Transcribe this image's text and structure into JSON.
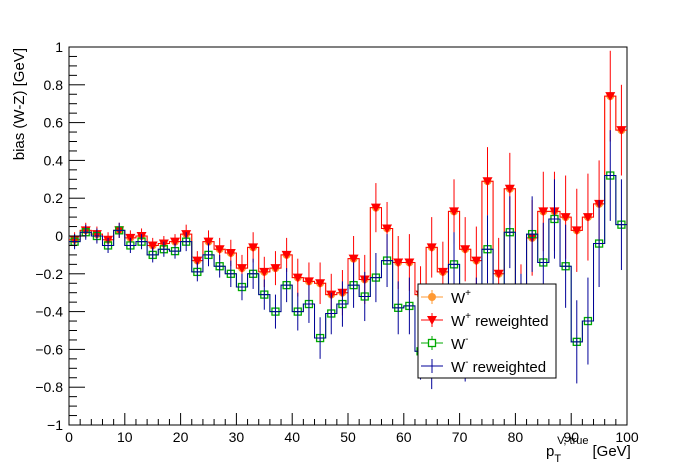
{
  "chart_data": {
    "type": "scatter",
    "xlabel": {
      "main": "p",
      "sub": "T",
      "sup": "V, true",
      "unit": "[GeV]"
    },
    "ylabel": "bias (W-Z) [GeV]",
    "xlim": [
      0,
      100
    ],
    "ylim": [
      -1,
      1
    ],
    "x_tick_labels": [
      "0",
      "10",
      "20",
      "30",
      "40",
      "50",
      "60",
      "70",
      "80",
      "90",
      "100"
    ],
    "y_tick_labels": [
      "−1",
      "−0.8",
      "−0.6",
      "−0.4",
      "−0.2",
      "0",
      "0.2",
      "0.4",
      "0.6",
      "0.8",
      "1"
    ],
    "grid": false,
    "legend_position": "bottom-right",
    "bin_width": 2,
    "x": [
      1,
      3,
      5,
      7,
      9,
      11,
      13,
      15,
      17,
      19,
      21,
      23,
      25,
      27,
      29,
      31,
      33,
      35,
      37,
      39,
      41,
      43,
      45,
      47,
      49,
      51,
      53,
      55,
      57,
      59,
      61,
      63,
      65,
      67,
      69,
      71,
      73,
      75,
      77,
      79,
      81,
      83,
      85,
      87,
      89,
      91,
      93,
      95,
      97,
      99
    ],
    "series": [
      {
        "name": "W+",
        "legend_sup": "+",
        "legend_text": " reweighted",
        "marker": "circle",
        "color": "#ff9933",
        "values": [
          -0.02,
          0.03,
          0.01,
          -0.02,
          0.03,
          -0.01,
          0.0,
          -0.05,
          -0.04,
          -0.03,
          0.01,
          -0.13,
          -0.03,
          -0.07,
          -0.09,
          -0.17,
          -0.06,
          -0.19,
          -0.17,
          -0.1,
          -0.22,
          -0.24,
          -0.25,
          -0.31,
          -0.3,
          -0.12,
          -0.23,
          0.15,
          0.04,
          -0.14,
          -0.14,
          -0.31,
          -0.06,
          -0.19,
          0.13,
          -0.07,
          -0.13,
          0.29,
          -0.2,
          0.25,
          -0.35,
          -0.01,
          0.13,
          0.13,
          0.1,
          0.03,
          0.1,
          0.17,
          0.74,
          0.56
        ],
        "err": [
          0.04,
          0.04,
          0.04,
          0.04,
          0.04,
          0.04,
          0.04,
          0.04,
          0.04,
          0.04,
          0.05,
          0.05,
          0.06,
          0.06,
          0.07,
          0.07,
          0.08,
          0.08,
          0.09,
          0.09,
          0.1,
          0.1,
          0.11,
          0.11,
          0.12,
          0.12,
          0.13,
          0.13,
          0.14,
          0.14,
          0.15,
          0.15,
          0.16,
          0.16,
          0.17,
          0.17,
          0.18,
          0.18,
          0.19,
          0.19,
          0.2,
          0.2,
          0.21,
          0.21,
          0.22,
          0.22,
          0.23,
          0.23,
          0.24,
          0.24
        ],
        "show_errors": false
      },
      {
        "name": "W+ reweighted",
        "marker": "triangle-down",
        "color": "#ff0000",
        "values": [
          -0.02,
          0.03,
          0.01,
          -0.02,
          0.03,
          -0.01,
          0.0,
          -0.05,
          -0.04,
          -0.03,
          0.01,
          -0.13,
          -0.03,
          -0.07,
          -0.09,
          -0.17,
          -0.06,
          -0.19,
          -0.17,
          -0.1,
          -0.22,
          -0.24,
          -0.25,
          -0.31,
          -0.3,
          -0.12,
          -0.23,
          0.15,
          0.04,
          -0.14,
          -0.14,
          -0.31,
          -0.06,
          -0.19,
          0.13,
          -0.07,
          -0.13,
          0.29,
          -0.2,
          0.25,
          -0.35,
          -0.01,
          0.13,
          0.13,
          0.1,
          0.03,
          0.1,
          0.17,
          0.74,
          0.56
        ],
        "err": [
          0.04,
          0.04,
          0.04,
          0.04,
          0.04,
          0.04,
          0.04,
          0.04,
          0.04,
          0.04,
          0.05,
          0.05,
          0.06,
          0.06,
          0.07,
          0.07,
          0.08,
          0.08,
          0.09,
          0.09,
          0.1,
          0.1,
          0.11,
          0.11,
          0.12,
          0.12,
          0.13,
          0.13,
          0.14,
          0.14,
          0.15,
          0.15,
          0.16,
          0.16,
          0.17,
          0.17,
          0.18,
          0.18,
          0.19,
          0.19,
          0.2,
          0.2,
          0.21,
          0.21,
          0.22,
          0.22,
          0.23,
          0.23,
          0.24,
          0.24
        ],
        "show_errors": true
      },
      {
        "name": "W-",
        "marker": "open-square",
        "color": "#00aa00",
        "values": [
          -0.03,
          0.02,
          0.0,
          -0.05,
          0.03,
          -0.05,
          -0.03,
          -0.1,
          -0.07,
          -0.08,
          -0.03,
          -0.19,
          -0.1,
          -0.16,
          -0.2,
          -0.27,
          -0.2,
          -0.31,
          -0.4,
          -0.26,
          -0.4,
          -0.36,
          -0.54,
          -0.41,
          -0.36,
          -0.26,
          -0.32,
          -0.22,
          -0.13,
          -0.38,
          -0.37,
          -0.61,
          -0.65,
          -0.56,
          -0.15,
          -0.6,
          -0.4,
          -0.07,
          -0.48,
          0.02,
          -0.4,
          0.01,
          -0.14,
          0.09,
          -0.16,
          -0.56,
          -0.45,
          -0.04,
          0.32,
          0.06
        ],
        "err": [
          0.04,
          0.04,
          0.04,
          0.04,
          0.04,
          0.04,
          0.04,
          0.04,
          0.04,
          0.04,
          0.05,
          0.05,
          0.06,
          0.06,
          0.07,
          0.07,
          0.08,
          0.08,
          0.09,
          0.09,
          0.1,
          0.1,
          0.11,
          0.11,
          0.12,
          0.12,
          0.13,
          0.13,
          0.14,
          0.14,
          0.15,
          0.15,
          0.16,
          0.16,
          0.17,
          0.17,
          0.18,
          0.18,
          0.19,
          0.19,
          0.2,
          0.2,
          0.21,
          0.21,
          0.22,
          0.22,
          0.23,
          0.23,
          0.24,
          0.24
        ],
        "show_errors": false
      },
      {
        "name": "W- reweighted",
        "marker": "line",
        "color": "#000099",
        "values": [
          -0.03,
          0.02,
          0.0,
          -0.05,
          0.03,
          -0.05,
          -0.03,
          -0.1,
          -0.07,
          -0.08,
          -0.03,
          -0.19,
          -0.1,
          -0.16,
          -0.2,
          -0.27,
          -0.2,
          -0.31,
          -0.4,
          -0.26,
          -0.4,
          -0.36,
          -0.54,
          -0.41,
          -0.36,
          -0.26,
          -0.32,
          -0.22,
          -0.13,
          -0.38,
          -0.37,
          -0.61,
          -0.65,
          -0.56,
          -0.15,
          -0.6,
          -0.4,
          -0.07,
          -0.48,
          0.02,
          -0.4,
          0.01,
          -0.14,
          0.09,
          -0.16,
          -0.56,
          -0.45,
          -0.04,
          0.32,
          0.06
        ],
        "err": [
          0.04,
          0.04,
          0.04,
          0.04,
          0.04,
          0.04,
          0.04,
          0.04,
          0.04,
          0.04,
          0.05,
          0.05,
          0.06,
          0.06,
          0.07,
          0.07,
          0.08,
          0.08,
          0.09,
          0.09,
          0.1,
          0.1,
          0.11,
          0.11,
          0.12,
          0.12,
          0.13,
          0.13,
          0.14,
          0.14,
          0.15,
          0.15,
          0.16,
          0.16,
          0.17,
          0.17,
          0.18,
          0.18,
          0.19,
          0.19,
          0.2,
          0.2,
          0.21,
          0.21,
          0.22,
          0.22,
          0.23,
          0.23,
          0.24,
          0.24
        ],
        "show_errors": true
      }
    ],
    "legend": [
      {
        "base": "W",
        "sup": "+",
        "rest": "",
        "color": "#ff9933",
        "marker": "circle"
      },
      {
        "base": "W",
        "sup": "+",
        "rest": " reweighted",
        "color": "#ff0000",
        "marker": "triangle-down"
      },
      {
        "base": "W",
        "sup": "-",
        "rest": "",
        "color": "#00aa00",
        "marker": "open-square"
      },
      {
        "base": "W",
        "sup": "-",
        "rest": " reweighted",
        "color": "#000099",
        "marker": "line"
      }
    ]
  }
}
